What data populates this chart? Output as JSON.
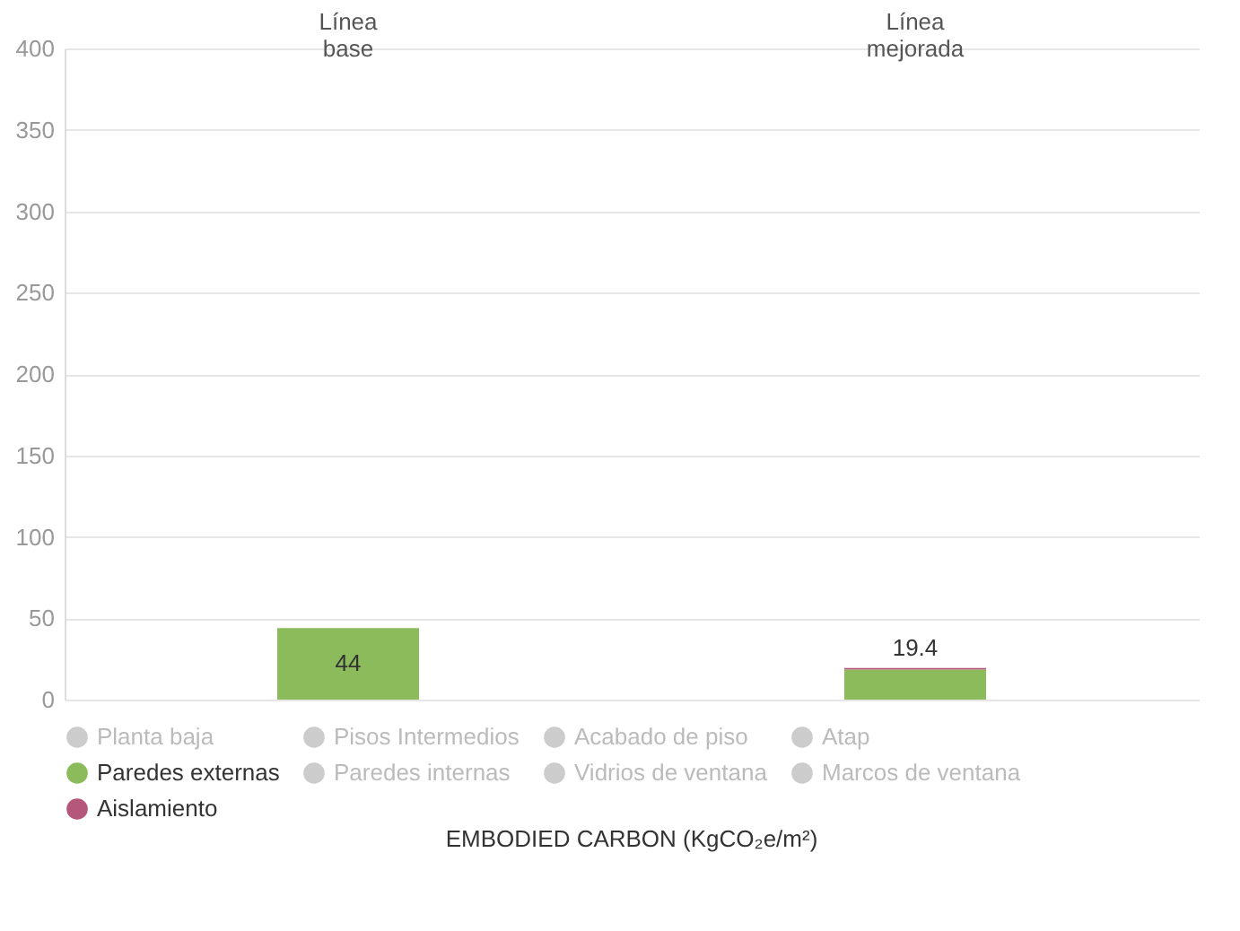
{
  "chart_data": {
    "type": "bar",
    "stacked": true,
    "xlabel": "EMBODIED CARBON (KgCO₂e/m²)",
    "categories": [
      "Línea base",
      "Línea mejorada"
    ],
    "series": [
      {
        "name": "Planta baja",
        "color": "#cccccc",
        "values": [
          null,
          null
        ]
      },
      {
        "name": "Pisos Intermedios",
        "color": "#cccccc",
        "values": [
          null,
          null
        ]
      },
      {
        "name": "Acabado de piso",
        "color": "#cccccc",
        "values": [
          null,
          null
        ]
      },
      {
        "name": "Atap",
        "color": "#cccccc",
        "values": [
          null,
          null
        ]
      },
      {
        "name": "Paredes externas",
        "color": "#8cbb5c",
        "values": [
          44,
          18.4
        ],
        "value_labels": [
          "44",
          null
        ]
      },
      {
        "name": "Paredes internas",
        "color": "#cccccc",
        "values": [
          null,
          null
        ]
      },
      {
        "name": "Vidrios de ventana",
        "color": "#cccccc",
        "values": [
          null,
          null
        ]
      },
      {
        "name": "Marcos de ventana",
        "color": "#cccccc",
        "values": [
          null,
          null
        ]
      },
      {
        "name": "Aislamiento",
        "color": "#b5577a",
        "values": [
          null,
          1
        ]
      }
    ],
    "totals": [
      null,
      "19.4"
    ],
    "ylim": [
      0,
      400
    ],
    "yticks": [
      0,
      50,
      100,
      150,
      200,
      250,
      300,
      350,
      400
    ],
    "grid": "y",
    "legend": "bottom"
  }
}
